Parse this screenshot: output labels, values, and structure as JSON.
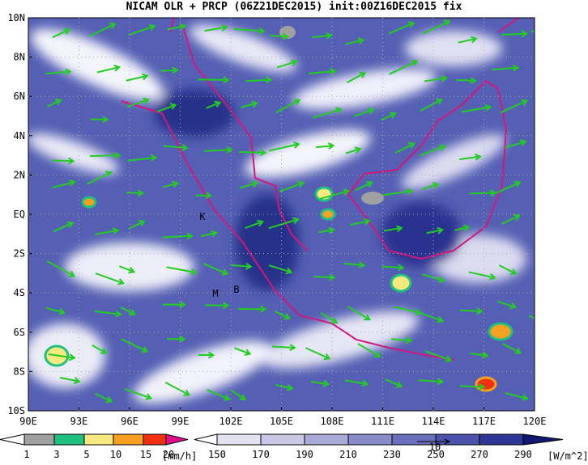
{
  "title": "NICAM OLR + PRCP (06Z21DEC2015) init:00Z16DEC2015 fix",
  "lat_labels": [
    "10N",
    "8N",
    "6N",
    "4N",
    "2N",
    "EQ",
    "2S",
    "4S",
    "6S",
    "8S",
    "10S"
  ],
  "lon_labels": [
    "90E",
    "93E",
    "96E",
    "99E",
    "102E",
    "105E",
    "108E",
    "111E",
    "114E",
    "117E",
    "120E"
  ],
  "site_labels": [
    "K",
    "M",
    "B"
  ],
  "precip_legend": {
    "labels": [
      "1",
      "3",
      "5",
      "10",
      "15",
      "20"
    ],
    "unit": "[mm/h]"
  },
  "olr_legend": {
    "labels": [
      "150",
      "170",
      "190",
      "210",
      "230",
      "250",
      "270",
      "290"
    ],
    "unit": "[W/m^2]"
  },
  "reference_arrow_label": "10"
}
